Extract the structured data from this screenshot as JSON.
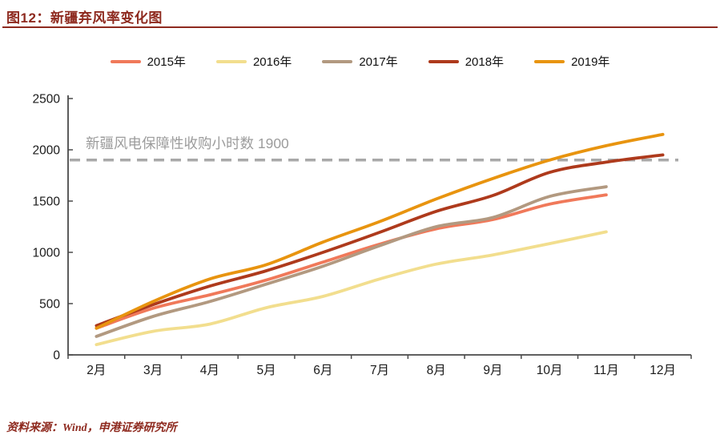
{
  "header": {
    "title": "图12：新疆弃风率变化图"
  },
  "footer": {
    "source": "资料来源：Wind，申港证券研究所"
  },
  "colors": {
    "accent": "#8E2A1F",
    "axis": "#4A4A4A",
    "tick_text": "#1A1A1A",
    "reference": "#A9A9A9"
  },
  "chart_data": {
    "type": "line",
    "title": "新疆弃风率变化图",
    "categories": [
      "2月",
      "3月",
      "4月",
      "5月",
      "6月",
      "7月",
      "8月",
      "9月",
      "10月",
      "11月",
      "12月"
    ],
    "series": [
      {
        "name": "2015年",
        "color": "#F0795A",
        "values": [
          260,
          455,
          585,
          730,
          905,
          1080,
          1230,
          1320,
          1470,
          1560,
          null
        ]
      },
      {
        "name": "2016年",
        "color": "#F2DE8E",
        "values": [
          100,
          230,
          300,
          460,
          570,
          740,
          885,
          975,
          1085,
          1200,
          null
        ]
      },
      {
        "name": "2017年",
        "color": "#B29980",
        "values": [
          180,
          375,
          520,
          690,
          865,
          1065,
          1250,
          1340,
          1545,
          1640,
          null
        ]
      },
      {
        "name": "2018年",
        "color": "#AE3A1C",
        "values": [
          285,
          490,
          670,
          820,
          1000,
          1195,
          1400,
          1555,
          1780,
          1880,
          1950
        ]
      },
      {
        "name": "2019年",
        "color": "#E8940F",
        "values": [
          260,
          520,
          740,
          880,
          1100,
          1300,
          1520,
          1720,
          1900,
          2040,
          2150
        ]
      }
    ],
    "ylim": [
      0,
      2500
    ],
    "yticks": [
      0,
      500,
      1000,
      1500,
      2000,
      2500
    ],
    "reference_line": {
      "value": 1900,
      "label": "新疆风电保障性收购小时数 1900",
      "color": "#A9A9A9"
    },
    "xlabel": "",
    "ylabel": "",
    "legend_position": "top",
    "grid": false
  }
}
